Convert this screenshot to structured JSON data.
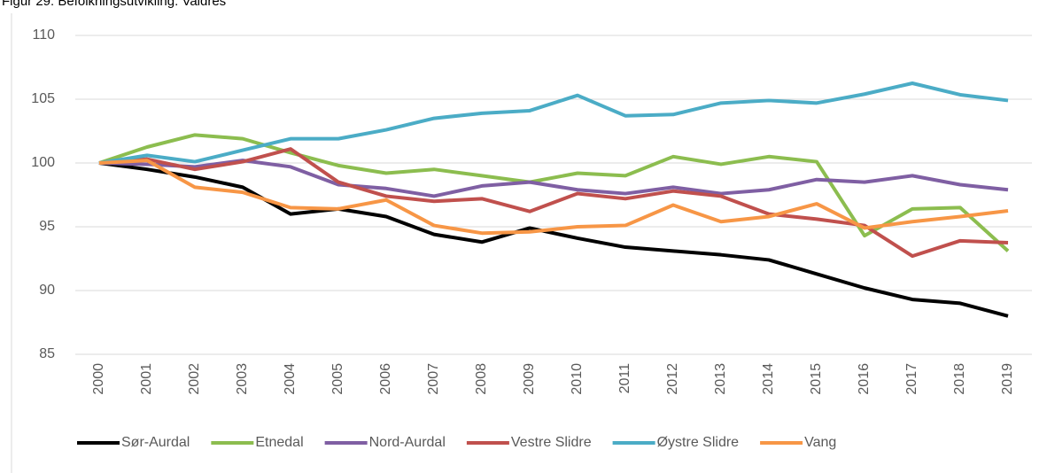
{
  "chart_data": {
    "type": "line",
    "title": "Figur 29: Befolkningsutvikling: Valdres",
    "x": [
      "2000",
      "2001",
      "2002",
      "2003",
      "2004",
      "2005",
      "2006",
      "2007",
      "2008",
      "2009",
      "2010",
      "2011",
      "2012",
      "2013",
      "2014",
      "2015",
      "2016",
      "2017",
      "2018",
      "2019"
    ],
    "ylim": [
      85,
      110
    ],
    "yticks": [
      85,
      90,
      95,
      100,
      105,
      110
    ],
    "grid": true,
    "legend": "bottom",
    "series": [
      {
        "name": "Sør-Aurdal",
        "color": "#000000",
        "values": [
          100,
          99.5,
          98.9,
          98.1,
          96.0,
          96.4,
          95.8,
          94.4,
          93.8,
          94.9,
          94.1,
          93.4,
          93.1,
          92.8,
          92.4,
          91.3,
          90.2,
          89.3,
          89.0,
          88.0
        ]
      },
      {
        "name": "Etnedal",
        "color": "#8cbd4f",
        "values": [
          100,
          101.25,
          102.2,
          101.9,
          100.8,
          99.8,
          99.2,
          99.5,
          99.0,
          98.5,
          99.2,
          99.0,
          100.5,
          99.9,
          100.5,
          100.1,
          94.3,
          96.4,
          96.5,
          93.1
        ]
      },
      {
        "name": "Nord-Aurdal",
        "color": "#7f5fa3",
        "values": [
          100,
          99.9,
          99.7,
          100.2,
          99.7,
          98.3,
          98.0,
          97.4,
          98.2,
          98.5,
          97.9,
          97.6,
          98.1,
          97.6,
          97.9,
          98.7,
          98.5,
          99.0,
          98.3,
          97.9
        ]
      },
      {
        "name": "Vestre Slidre",
        "color": "#c0504d",
        "values": [
          100,
          100.3,
          99.5,
          100.1,
          101.1,
          98.5,
          97.4,
          97.0,
          97.2,
          96.2,
          97.6,
          97.2,
          97.8,
          97.4,
          96.0,
          95.6,
          95.1,
          92.7,
          93.9,
          93.75
        ]
      },
      {
        "name": "Øystre Slidre",
        "color": "#4bacc6",
        "values": [
          100,
          100.6,
          100.1,
          101.0,
          101.9,
          101.9,
          102.6,
          103.5,
          103.9,
          104.1,
          105.3,
          103.7,
          103.8,
          104.7,
          104.9,
          104.7,
          105.4,
          106.25,
          105.35,
          104.9
        ]
      },
      {
        "name": "Vang",
        "color": "#f79646",
        "values": [
          100,
          100.2,
          98.1,
          97.7,
          96.5,
          96.4,
          97.1,
          95.1,
          94.5,
          94.6,
          95.0,
          95.1,
          96.7,
          95.4,
          95.8,
          96.8,
          94.9,
          95.4,
          95.8,
          96.25
        ]
      }
    ]
  }
}
